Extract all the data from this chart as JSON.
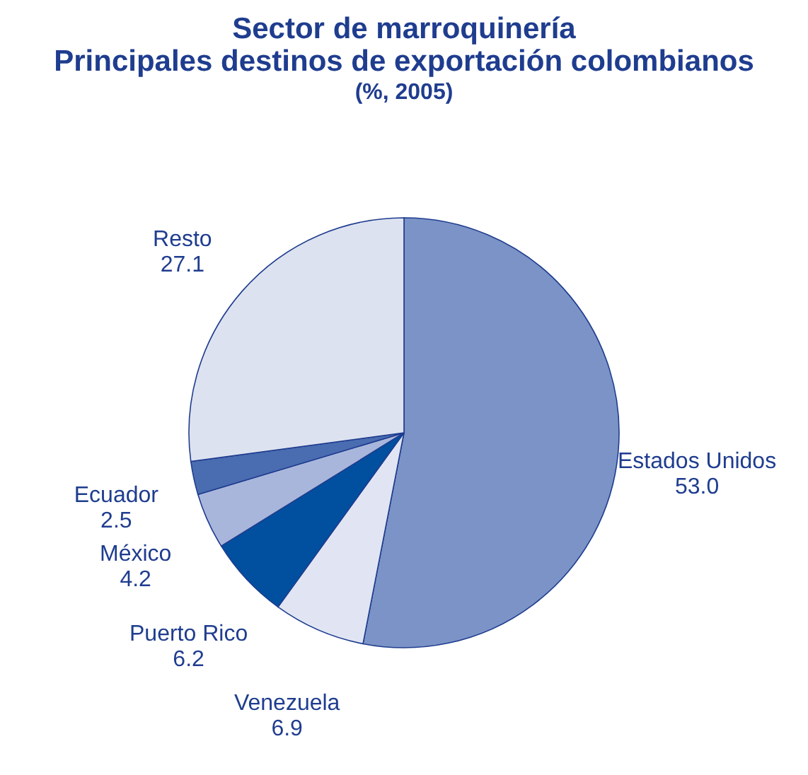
{
  "chart_data": {
    "type": "pie",
    "title": "Sector de marroquinería\nPrincipales destinos de exportación colombianos",
    "subtitle": "(%, 2005)",
    "categories": [
      "Estados Unidos",
      "Venezuela",
      "Puerto Rico",
      "México",
      "Ecuador",
      "Resto"
    ],
    "values": [
      53.0,
      6.9,
      6.2,
      4.2,
      2.5,
      27.1
    ],
    "colors": [
      "#7b93c6",
      "#e1e5f3",
      "#00509f",
      "#a9b6dc",
      "#4a6cb0",
      "#dde2f0"
    ],
    "value_labels": [
      "53.0",
      "6.9",
      "6.2",
      "4.2",
      "2.5",
      "27.1"
    ],
    "legend": false
  }
}
